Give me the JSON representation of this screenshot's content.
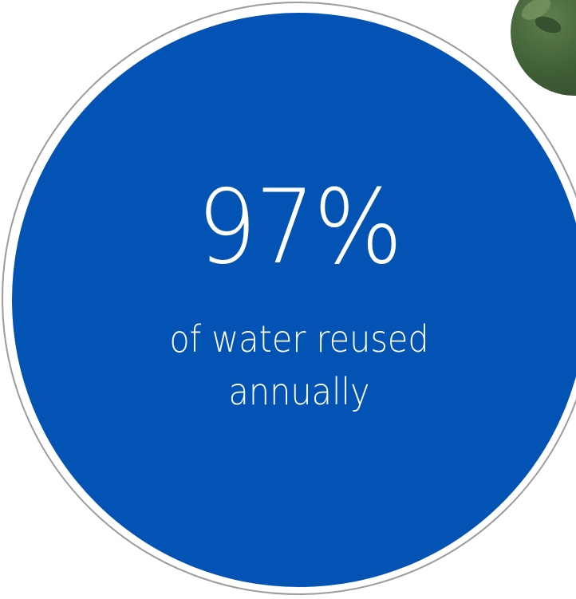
{
  "stat": {
    "value": "97%",
    "caption_line1": "of water reused",
    "caption_line2": "annually"
  },
  "colors": {
    "circle_fill": "#0353b5",
    "circle_outline": "#9b9b9b",
    "text": "#ffffff",
    "background": "#ffffff"
  },
  "icons": {
    "corner_image": "foliage-photo"
  }
}
